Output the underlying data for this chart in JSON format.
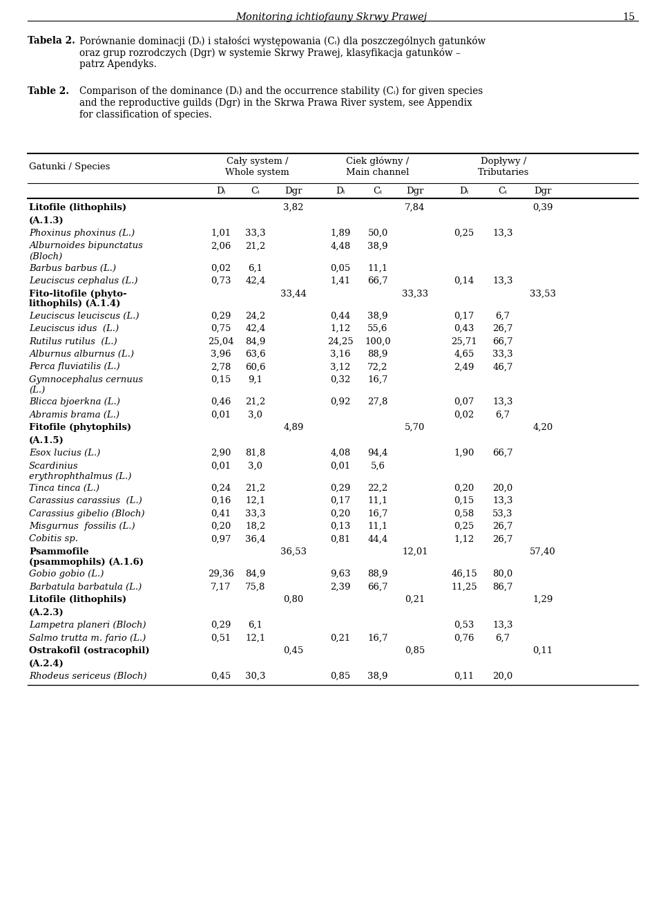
{
  "header_title": "Monitoring ichtiofauny Skrwy Prawej",
  "page_number": "15",
  "tabela_label": "Tabela 2.",
  "tabela_lines": [
    "Porównanie dominacji (Dᵢ) i stałości występowania (Cᵢ) dla poszczególnych gatunków",
    "oraz grup rozrodczych (Dgr) w systemie Skrwy Prawej, klasyfikacja gatunków –",
    "patrz Apendyks."
  ],
  "table_label": "Table 2.",
  "table_lines": [
    "Comparison of the dominance (Dᵢ) and the occurrence stability (Cᵢ) for given species",
    "and the reproductive guilds (Dgr) in the Skrwa Prawa River system, see Appendix",
    "for classification of species."
  ],
  "rows": [
    {
      "species": "Litofile (lithophils)",
      "bold": true,
      "italic": false,
      "ws_di": "",
      "ws_ci": "",
      "ws_dgr": "3,82",
      "mc_di": "",
      "mc_ci": "",
      "mc_dgr": "7,84",
      "tr_di": "",
      "tr_ci": "",
      "tr_dgr": "0,39",
      "multiline": false
    },
    {
      "species": "(A.1.3)",
      "bold": true,
      "italic": false,
      "ws_di": "",
      "ws_ci": "",
      "ws_dgr": "",
      "mc_di": "",
      "mc_ci": "",
      "mc_dgr": "",
      "tr_di": "",
      "tr_ci": "",
      "tr_dgr": "",
      "multiline": false
    },
    {
      "species": "Phoxinus phoxinus (L.)",
      "bold": false,
      "italic": true,
      "ws_di": "1,01",
      "ws_ci": "33,3",
      "ws_dgr": "",
      "mc_di": "1,89",
      "mc_ci": "50,0",
      "mc_dgr": "",
      "tr_di": "0,25",
      "tr_ci": "13,3",
      "tr_dgr": "",
      "multiline": false
    },
    {
      "species": "Alburnoides bipunctatus\n(Bloch)",
      "bold": false,
      "italic": true,
      "ws_di": "2,06",
      "ws_ci": "21,2",
      "ws_dgr": "",
      "mc_di": "4,48",
      "mc_ci": "38,9",
      "mc_dgr": "",
      "tr_di": "",
      "tr_ci": "",
      "tr_dgr": "",
      "multiline": true
    },
    {
      "species": "Barbus barbus (L.)",
      "bold": false,
      "italic": true,
      "ws_di": "0,02",
      "ws_ci": "6,1",
      "ws_dgr": "",
      "mc_di": "0,05",
      "mc_ci": "11,1",
      "mc_dgr": "",
      "tr_di": "",
      "tr_ci": "",
      "tr_dgr": "",
      "multiline": false
    },
    {
      "species": "Leuciscus cephalus (L.)",
      "bold": false,
      "italic": true,
      "ws_di": "0,73",
      "ws_ci": "42,4",
      "ws_dgr": "",
      "mc_di": "1,41",
      "mc_ci": "66,7",
      "mc_dgr": "",
      "tr_di": "0,14",
      "tr_ci": "13,3",
      "tr_dgr": "",
      "multiline": false
    },
    {
      "species": "Fito-litofile (phyto-\nlithophils) (A.1.4)",
      "bold": true,
      "italic": false,
      "ws_di": "",
      "ws_ci": "",
      "ws_dgr": "33,44",
      "mc_di": "",
      "mc_ci": "",
      "mc_dgr": "33,33",
      "tr_di": "",
      "tr_ci": "",
      "tr_dgr": "33,53",
      "multiline": true
    },
    {
      "species": "Leuciscus leuciscus (L.)",
      "bold": false,
      "italic": true,
      "ws_di": "0,29",
      "ws_ci": "24,2",
      "ws_dgr": "",
      "mc_di": "0,44",
      "mc_ci": "38,9",
      "mc_dgr": "",
      "tr_di": "0,17",
      "tr_ci": "6,7",
      "tr_dgr": "",
      "multiline": false
    },
    {
      "species": "Leuciscus idus  (L.)",
      "bold": false,
      "italic": true,
      "ws_di": "0,75",
      "ws_ci": "42,4",
      "ws_dgr": "",
      "mc_di": "1,12",
      "mc_ci": "55,6",
      "mc_dgr": "",
      "tr_di": "0,43",
      "tr_ci": "26,7",
      "tr_dgr": "",
      "multiline": false
    },
    {
      "species": "Rutilus rutilus  (L.)",
      "bold": false,
      "italic": true,
      "ws_di": "25,04",
      "ws_ci": "84,9",
      "ws_dgr": "",
      "mc_di": "24,25",
      "mc_ci": "100,0",
      "mc_dgr": "",
      "tr_di": "25,71",
      "tr_ci": "66,7",
      "tr_dgr": "",
      "multiline": false
    },
    {
      "species": "Alburnus alburnus (L.)",
      "bold": false,
      "italic": true,
      "ws_di": "3,96",
      "ws_ci": "63,6",
      "ws_dgr": "",
      "mc_di": "3,16",
      "mc_ci": "88,9",
      "mc_dgr": "",
      "tr_di": "4,65",
      "tr_ci": "33,3",
      "tr_dgr": "",
      "multiline": false
    },
    {
      "species": "Perca fluviatilis (L.)",
      "bold": false,
      "italic": true,
      "ws_di": "2,78",
      "ws_ci": "60,6",
      "ws_dgr": "",
      "mc_di": "3,12",
      "mc_ci": "72,2",
      "mc_dgr": "",
      "tr_di": "2,49",
      "tr_ci": "46,7",
      "tr_dgr": "",
      "multiline": false
    },
    {
      "species": "Gymnocephalus cernuus\n(L.)",
      "bold": false,
      "italic": true,
      "ws_di": "0,15",
      "ws_ci": "9,1",
      "ws_dgr": "",
      "mc_di": "0,32",
      "mc_ci": "16,7",
      "mc_dgr": "",
      "tr_di": "",
      "tr_ci": "",
      "tr_dgr": "",
      "multiline": true
    },
    {
      "species": "Blicca bjoerkna (L.)",
      "bold": false,
      "italic": true,
      "ws_di": "0,46",
      "ws_ci": "21,2",
      "ws_dgr": "",
      "mc_di": "0,92",
      "mc_ci": "27,8",
      "mc_dgr": "",
      "tr_di": "0,07",
      "tr_ci": "13,3",
      "tr_dgr": "",
      "multiline": false
    },
    {
      "species": "Abramis brama (L.)",
      "bold": false,
      "italic": true,
      "ws_di": "0,01",
      "ws_ci": "3,0",
      "ws_dgr": "",
      "mc_di": "",
      "mc_ci": "",
      "mc_dgr": "",
      "tr_di": "0,02",
      "tr_ci": "6,7",
      "tr_dgr": "",
      "multiline": false
    },
    {
      "species": "Fitofile (phytophils)",
      "bold": true,
      "italic": false,
      "ws_di": "",
      "ws_ci": "",
      "ws_dgr": "4,89",
      "mc_di": "",
      "mc_ci": "",
      "mc_dgr": "5,70",
      "tr_di": "",
      "tr_ci": "",
      "tr_dgr": "4,20",
      "multiline": false
    },
    {
      "species": "(A.1.5)",
      "bold": true,
      "italic": false,
      "ws_di": "",
      "ws_ci": "",
      "ws_dgr": "",
      "mc_di": "",
      "mc_ci": "",
      "mc_dgr": "",
      "tr_di": "",
      "tr_ci": "",
      "tr_dgr": "",
      "multiline": false
    },
    {
      "species": "Esox lucius (L.)",
      "bold": false,
      "italic": true,
      "ws_di": "2,90",
      "ws_ci": "81,8",
      "ws_dgr": "",
      "mc_di": "4,08",
      "mc_ci": "94,4",
      "mc_dgr": "",
      "tr_di": "1,90",
      "tr_ci": "66,7",
      "tr_dgr": "",
      "multiline": false
    },
    {
      "species": "Scardinius\nerythrophthalmus (L.)",
      "bold": false,
      "italic": true,
      "ws_di": "0,01",
      "ws_ci": "3,0",
      "ws_dgr": "",
      "mc_di": "0,01",
      "mc_ci": "5,6",
      "mc_dgr": "",
      "tr_di": "",
      "tr_ci": "",
      "tr_dgr": "",
      "multiline": true
    },
    {
      "species": "Tinca tinca (L.)",
      "bold": false,
      "italic": true,
      "ws_di": "0,24",
      "ws_ci": "21,2",
      "ws_dgr": "",
      "mc_di": "0,29",
      "mc_ci": "22,2",
      "mc_dgr": "",
      "tr_di": "0,20",
      "tr_ci": "20,0",
      "tr_dgr": "",
      "multiline": false
    },
    {
      "species": "Carassius carassius  (L.)",
      "bold": false,
      "italic": true,
      "ws_di": "0,16",
      "ws_ci": "12,1",
      "ws_dgr": "",
      "mc_di": "0,17",
      "mc_ci": "11,1",
      "mc_dgr": "",
      "tr_di": "0,15",
      "tr_ci": "13,3",
      "tr_dgr": "",
      "multiline": false
    },
    {
      "species": "Carassius gibelio (Bloch)",
      "bold": false,
      "italic": true,
      "ws_di": "0,41",
      "ws_ci": "33,3",
      "ws_dgr": "",
      "mc_di": "0,20",
      "mc_ci": "16,7",
      "mc_dgr": "",
      "tr_di": "0,58",
      "tr_ci": "53,3",
      "tr_dgr": "",
      "multiline": false
    },
    {
      "species": "Misgurnus  fossilis (L.)",
      "bold": false,
      "italic": true,
      "ws_di": "0,20",
      "ws_ci": "18,2",
      "ws_dgr": "",
      "mc_di": "0,13",
      "mc_ci": "11,1",
      "mc_dgr": "",
      "tr_di": "0,25",
      "tr_ci": "26,7",
      "tr_dgr": "",
      "multiline": false
    },
    {
      "species": "Cobitis sp.",
      "bold": false,
      "italic": true,
      "ws_di": "0,97",
      "ws_ci": "36,4",
      "ws_dgr": "",
      "mc_di": "0,81",
      "mc_ci": "44,4",
      "mc_dgr": "",
      "tr_di": "1,12",
      "tr_ci": "26,7",
      "tr_dgr": "",
      "multiline": false
    },
    {
      "species": "Psammofile\n(psammophils) (A.1.6)",
      "bold": true,
      "italic": false,
      "ws_di": "",
      "ws_ci": "",
      "ws_dgr": "36,53",
      "mc_di": "",
      "mc_ci": "",
      "mc_dgr": "12,01",
      "tr_di": "",
      "tr_ci": "",
      "tr_dgr": "57,40",
      "multiline": true
    },
    {
      "species": "Gobio gobio (L.)",
      "bold": false,
      "italic": true,
      "ws_di": "29,36",
      "ws_ci": "84,9",
      "ws_dgr": "",
      "mc_di": "9,63",
      "mc_ci": "88,9",
      "mc_dgr": "",
      "tr_di": "46,15",
      "tr_ci": "80,0",
      "tr_dgr": "",
      "multiline": false
    },
    {
      "species": "Barbatula barbatula (L.)",
      "bold": false,
      "italic": true,
      "ws_di": "7,17",
      "ws_ci": "75,8",
      "ws_dgr": "",
      "mc_di": "2,39",
      "mc_ci": "66,7",
      "mc_dgr": "",
      "tr_di": "11,25",
      "tr_ci": "86,7",
      "tr_dgr": "",
      "multiline": false
    },
    {
      "species": "Litofile (lithophils)",
      "bold": true,
      "italic": false,
      "ws_di": "",
      "ws_ci": "",
      "ws_dgr": "0,80",
      "mc_di": "",
      "mc_ci": "",
      "mc_dgr": "0,21",
      "tr_di": "",
      "tr_ci": "",
      "tr_dgr": "1,29",
      "multiline": false
    },
    {
      "species": "(A.2.3)",
      "bold": true,
      "italic": false,
      "ws_di": "",
      "ws_ci": "",
      "ws_dgr": "",
      "mc_di": "",
      "mc_ci": "",
      "mc_dgr": "",
      "tr_di": "",
      "tr_ci": "",
      "tr_dgr": "",
      "multiline": false
    },
    {
      "species": "Lampetra planeri (Bloch)",
      "bold": false,
      "italic": true,
      "ws_di": "0,29",
      "ws_ci": "6,1",
      "ws_dgr": "",
      "mc_di": "",
      "mc_ci": "",
      "mc_dgr": "",
      "tr_di": "0,53",
      "tr_ci": "13,3",
      "tr_dgr": "",
      "multiline": false
    },
    {
      "species": "Salmo trutta m. fario (L.)",
      "bold": false,
      "italic": true,
      "ws_di": "0,51",
      "ws_ci": "12,1",
      "ws_dgr": "",
      "mc_di": "0,21",
      "mc_ci": "16,7",
      "mc_dgr": "",
      "tr_di": "0,76",
      "tr_ci": "6,7",
      "tr_dgr": "",
      "multiline": false
    },
    {
      "species": "Ostrakofil (ostracophil)",
      "bold": true,
      "italic": false,
      "ws_di": "",
      "ws_ci": "",
      "ws_dgr": "0,45",
      "mc_di": "",
      "mc_ci": "",
      "mc_dgr": "0,85",
      "tr_di": "",
      "tr_ci": "",
      "tr_dgr": "0,11",
      "multiline": false
    },
    {
      "species": "(A.2.4)",
      "bold": true,
      "italic": false,
      "ws_di": "",
      "ws_ci": "",
      "ws_dgr": "",
      "mc_di": "",
      "mc_ci": "",
      "mc_dgr": "",
      "tr_di": "",
      "tr_ci": "",
      "tr_dgr": "",
      "multiline": false
    },
    {
      "species": "Rhodeus sericeus (Bloch)",
      "bold": false,
      "italic": true,
      "ws_di": "0,45",
      "ws_ci": "30,3",
      "ws_dgr": "",
      "mc_di": "0,85",
      "mc_ci": "38,9",
      "mc_dgr": "",
      "tr_di": "0,11",
      "tr_ci": "20,0",
      "tr_dgr": "",
      "multiline": false
    }
  ]
}
